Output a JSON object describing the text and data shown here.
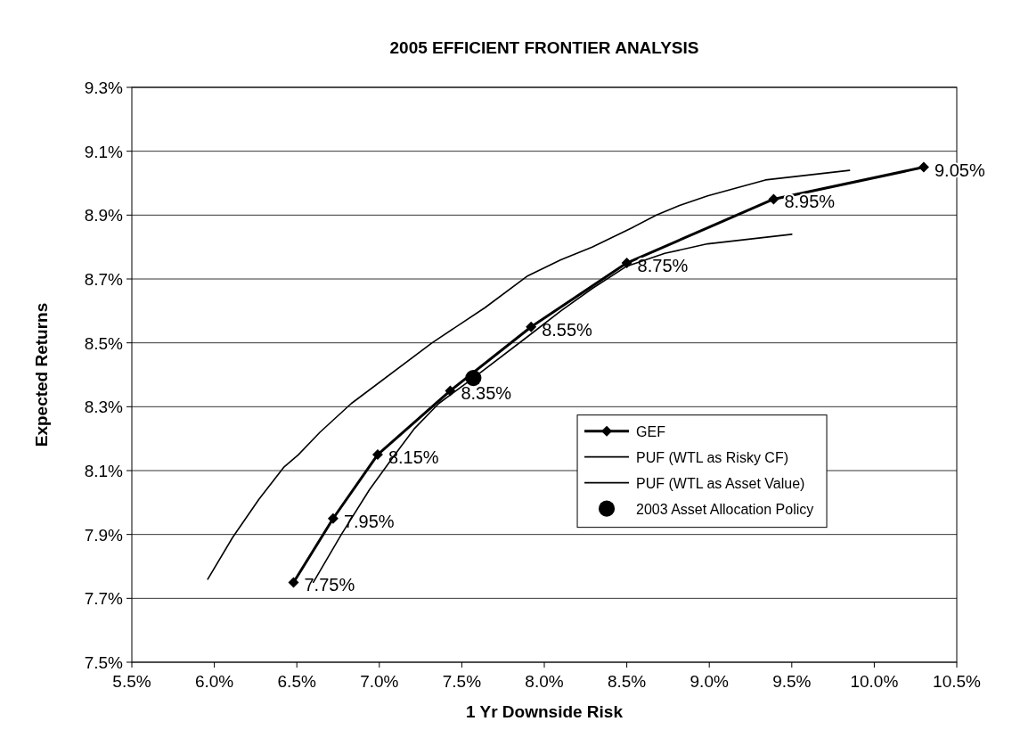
{
  "chart_data": {
    "type": "line",
    "title": "2005 EFFICIENT FRONTIER ANALYSIS",
    "xlabel": "1 Yr Downside Risk",
    "ylabel": "Expected Returns",
    "xlim": [
      5.5,
      10.5
    ],
    "xticks": [
      {
        "value": 5.5,
        "label": "5.5%"
      },
      {
        "value": 6,
        "label": "6.0%"
      },
      {
        "value": 6.5,
        "label": "6.5%"
      },
      {
        "value": 7,
        "label": "7.0%"
      },
      {
        "value": 7.5,
        "label": "7.5%"
      },
      {
        "value": 8,
        "label": "8.0%"
      },
      {
        "value": 8.5,
        "label": "8.5%"
      },
      {
        "value": 9,
        "label": "9.0%"
      },
      {
        "value": 9.5,
        "label": "9.5%"
      },
      {
        "value": 10,
        "label": "10.0%"
      },
      {
        "value": 10.5,
        "label": "10.5%"
      }
    ],
    "ylim": [
      7.5,
      9.3
    ],
    "yticks": [
      {
        "value": 7.5,
        "label": "7.5%"
      },
      {
        "value": 7.7,
        "label": "7.7%"
      },
      {
        "value": 7.9,
        "label": "7.9%"
      },
      {
        "value": 8.1,
        "label": "8.1%"
      },
      {
        "value": 8.3,
        "label": "8.3%"
      },
      {
        "value": 8.5,
        "label": "8.5%"
      },
      {
        "value": 8.7,
        "label": "8.7%"
      },
      {
        "value": 8.9,
        "label": "8.9%"
      },
      {
        "value": 9.1,
        "label": "9.1%"
      },
      {
        "value": 9.3,
        "label": "9.3%"
      }
    ],
    "grid": "y",
    "legend": "right",
    "series": [
      {
        "name": "GEF",
        "marker": "diamond",
        "color": "#000000",
        "x": [
          6.48,
          6.72,
          6.99,
          7.43,
          7.92,
          8.5,
          9.39,
          10.3
        ],
        "values": [
          7.75,
          7.95,
          8.15,
          8.35,
          8.55,
          8.75,
          8.95,
          9.05
        ],
        "value_labels": [
          "7.75%",
          "7.95%",
          "8.15%",
          "8.35%",
          "8.55%",
          "8.75%",
          "8.95%",
          "9.05%"
        ]
      },
      {
        "name": "PUF (WTL as Risky CF)",
        "marker": "none",
        "color": "#000000",
        "x": [
          5.96,
          6.11,
          6.27,
          6.42,
          6.51,
          6.64,
          6.83,
          7.32,
          7.64,
          7.9,
          8.1,
          8.29,
          8.53,
          8.68,
          8.82,
          8.99,
          9.34,
          9.85
        ],
        "values": [
          7.76,
          7.89,
          8.01,
          8.11,
          8.15,
          8.22,
          8.31,
          8.5,
          8.61,
          8.71,
          8.76,
          8.8,
          8.86,
          8.9,
          8.93,
          8.96,
          9.01,
          9.04
        ]
      },
      {
        "name": "PUF (WTL as Asset Value)",
        "marker": "none",
        "color": "#000000",
        "x": [
          6.6,
          6.77,
          6.94,
          7.08,
          7.21,
          7.36,
          7.57,
          7.9,
          8.1,
          8.29,
          8.5,
          8.73,
          8.99,
          9.5
        ],
        "values": [
          7.75,
          7.9,
          8.04,
          8.14,
          8.23,
          8.31,
          8.39,
          8.52,
          8.6,
          8.67,
          8.74,
          8.78,
          8.81,
          8.84
        ]
      },
      {
        "name": "2003 Asset Allocation Policy",
        "type": "scatter",
        "marker": "circle",
        "color": "#000000",
        "x": [
          7.57
        ],
        "values": [
          8.39
        ]
      }
    ]
  }
}
